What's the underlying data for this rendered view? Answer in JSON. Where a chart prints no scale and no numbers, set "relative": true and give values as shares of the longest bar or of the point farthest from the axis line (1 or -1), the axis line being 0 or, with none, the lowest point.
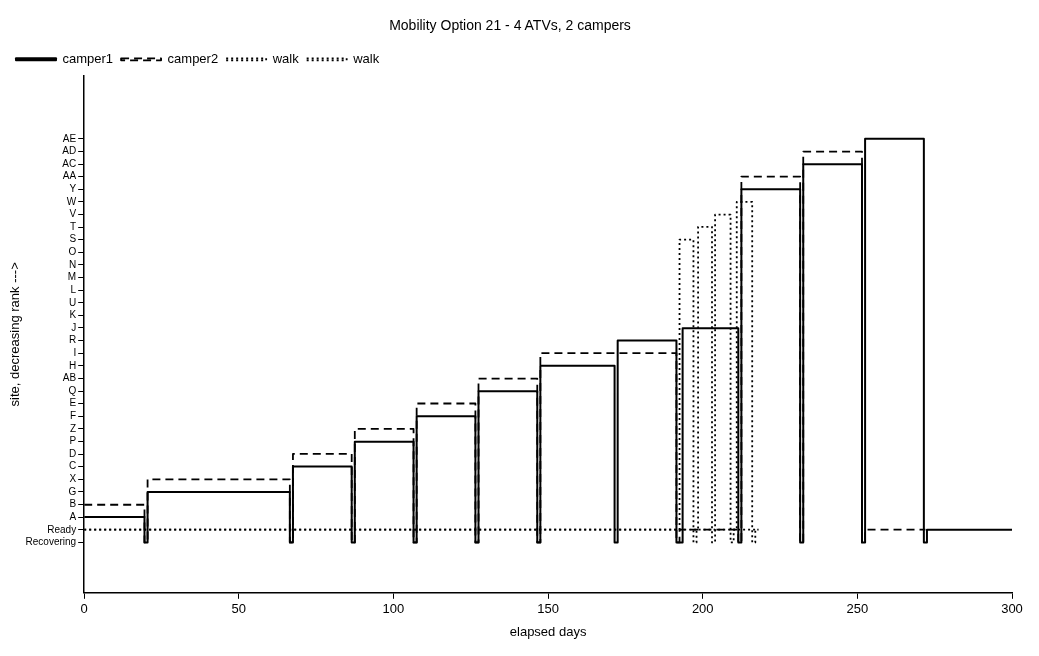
{
  "chart_data": {
    "type": "step",
    "title": "Mobility Option 21 - 4 ATVs, 2 campers",
    "xlabel": "elapsed days",
    "ylabel": "site, decreasing rank --->",
    "xlim": [
      0,
      300
    ],
    "xticks": [
      0,
      50,
      100,
      150,
      200,
      250,
      300
    ],
    "relative": true,
    "y_categories": [
      null,
      null,
      null,
      null,
      null,
      "AE",
      "AD",
      "AC",
      "AA",
      "Y",
      "W",
      "V",
      "T",
      "S",
      "O",
      "N",
      "M",
      "L",
      "U",
      "K",
      "J",
      "R",
      "I",
      "H",
      "AB",
      "Q",
      "E",
      "F",
      "Z",
      "P",
      "D",
      "C",
      "X",
      "G",
      "B",
      "A",
      "Ready",
      "Recovering",
      null,
      null,
      null,
      null
    ],
    "legend": "top left",
    "series": [
      {
        "name": "camper1",
        "color": "#000000",
        "line_style": "solid",
        "x": [
          0,
          19.5,
          20.5,
          66.5,
          67.5,
          86.5,
          87.5,
          106.5,
          107.5,
          126.5,
          127.5,
          146.5,
          147.5,
          171.5,
          172.5,
          191.5,
          193.5,
          211.5,
          212.5,
          231.5,
          232.5,
          251.5,
          252.5,
          271.5,
          272.5,
          300
        ],
        "values": [
          0.167,
          0.111,
          0.222,
          0.111,
          0.278,
          0.111,
          0.333,
          0.111,
          0.389,
          0.111,
          0.444,
          0.111,
          0.5,
          0.111,
          0.556,
          0.111,
          0.583,
          0.111,
          0.889,
          0.111,
          0.944,
          0.111,
          1,
          0.111,
          0.139,
          0.139
        ]
      },
      {
        "name": "camper2",
        "color": "#000000",
        "line_style": "dashed",
        "x": [
          0,
          19.5,
          20.5,
          66.5,
          67.5,
          86.5,
          87.5,
          106.5,
          107.5,
          126.5,
          127.5,
          146.5,
          147.5,
          191.5,
          192.5,
          211.5,
          212.5,
          231.5,
          232.5,
          251.5,
          252.5,
          272
        ],
        "values": [
          0.194,
          0.111,
          0.25,
          0.111,
          0.306,
          0.111,
          0.361,
          0.111,
          0.417,
          0.111,
          0.472,
          0.111,
          0.528,
          0.111,
          0.139,
          0.111,
          0.917,
          0.111,
          0.972,
          0.111,
          0.139,
          0.139
        ]
      },
      {
        "name": "walk",
        "color": "#000000",
        "line_style": "dotted",
        "x": [
          0,
          192.5,
          197,
          198,
          204,
          209,
          210,
          218
        ],
        "values": [
          0.139,
          0.778,
          0.111,
          0.139,
          0.833,
          0.111,
          0.139,
          0.139
        ]
      },
      {
        "name": "walk",
        "color": "#000000",
        "line_style": "dotted",
        "x": [
          0,
          198.5,
          203,
          204,
          211,
          216,
          217,
          218
        ],
        "values": [
          0.139,
          0.806,
          0.111,
          0.139,
          0.861,
          0.111,
          0.139,
          0.139
        ]
      }
    ]
  }
}
